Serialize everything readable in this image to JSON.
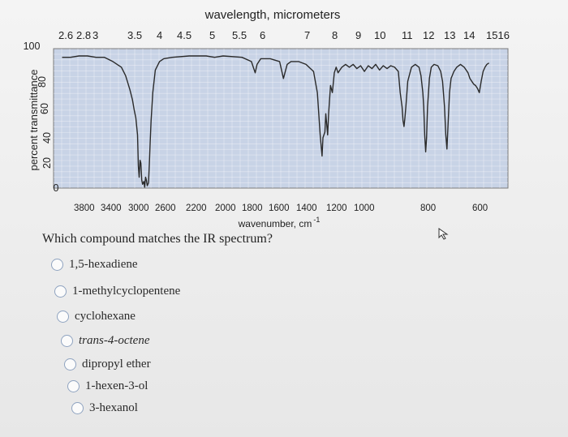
{
  "chart_data": {
    "type": "line",
    "top_axis_title": "wavelength, micrometers",
    "top_ticks": [
      "2.6",
      "2.8",
      "3",
      "3.5",
      "4",
      "4.5",
      "5",
      "5.5",
      "6",
      "7",
      "8",
      "9",
      "10",
      "11",
      "12",
      "13",
      "14",
      "1516"
    ],
    "xlabel": "wavenumber, cm",
    "xlabel_sup": "-1",
    "x_ticks": [
      "3800",
      "3400",
      "3000",
      "2600",
      "2200",
      "2000",
      "1800",
      "1600",
      "1400",
      "1200",
      "1000",
      "800",
      "600"
    ],
    "ylabel": "percent transmittance",
    "y_ticks": [
      "0",
      "20",
      "40",
      "60",
      "80",
      "100"
    ],
    "ylim": [
      0,
      100
    ],
    "grid": true,
    "line_color": "#2a2a2a",
    "plot_background": "#c8d3e6",
    "points": [
      [
        3900,
        95
      ],
      [
        3800,
        95
      ],
      [
        3700,
        96
      ],
      [
        3600,
        96
      ],
      [
        3500,
        95
      ],
      [
        3400,
        95
      ],
      [
        3300,
        92
      ],
      [
        3200,
        88
      ],
      [
        3150,
        82
      ],
      [
        3100,
        72
      ],
      [
        3070,
        65
      ],
      [
        3050,
        58
      ],
      [
        3030,
        52
      ],
      [
        3010,
        40
      ],
      [
        3000,
        18
      ],
      [
        2990,
        10
      ],
      [
        2980,
        22
      ],
      [
        2970,
        20
      ],
      [
        2960,
        8
      ],
      [
        2950,
        5
      ],
      [
        2935,
        7
      ],
      [
        2925,
        3
      ],
      [
        2915,
        10
      ],
      [
        2905,
        8
      ],
      [
        2895,
        4
      ],
      [
        2880,
        6
      ],
      [
        2870,
        20
      ],
      [
        2860,
        35
      ],
      [
        2850,
        50
      ],
      [
        2830,
        70
      ],
      [
        2800,
        86
      ],
      [
        2750,
        92
      ],
      [
        2700,
        94
      ],
      [
        2600,
        95
      ],
      [
        2400,
        96
      ],
      [
        2200,
        96
      ],
      [
        2100,
        95
      ],
      [
        2000,
        96
      ],
      [
        1900,
        95
      ],
      [
        1850,
        92
      ],
      [
        1830,
        84
      ],
      [
        1820,
        90
      ],
      [
        1800,
        94
      ],
      [
        1750,
        94
      ],
      [
        1700,
        92
      ],
      [
        1680,
        80
      ],
      [
        1660,
        90
      ],
      [
        1640,
        92
      ],
      [
        1600,
        92
      ],
      [
        1560,
        90
      ],
      [
        1520,
        85
      ],
      [
        1500,
        70
      ],
      [
        1485,
        40
      ],
      [
        1475,
        25
      ],
      [
        1470,
        38
      ],
      [
        1460,
        42
      ],
      [
        1455,
        55
      ],
      [
        1445,
        40
      ],
      [
        1440,
        55
      ],
      [
        1430,
        75
      ],
      [
        1420,
        70
      ],
      [
        1410,
        84
      ],
      [
        1400,
        88
      ],
      [
        1390,
        84
      ],
      [
        1380,
        86
      ],
      [
        1370,
        88
      ],
      [
        1350,
        90
      ],
      [
        1330,
        88
      ],
      [
        1310,
        90
      ],
      [
        1290,
        87
      ],
      [
        1270,
        89
      ],
      [
        1250,
        85
      ],
      [
        1230,
        89
      ],
      [
        1210,
        87
      ],
      [
        1190,
        90
      ],
      [
        1170,
        86
      ],
      [
        1150,
        89
      ],
      [
        1130,
        87
      ],
      [
        1110,
        89
      ],
      [
        1090,
        88
      ],
      [
        1070,
        85
      ],
      [
        1060,
        70
      ],
      [
        1050,
        60
      ],
      [
        1045,
        50
      ],
      [
        1040,
        46
      ],
      [
        1035,
        52
      ],
      [
        1030,
        60
      ],
      [
        1020,
        78
      ],
      [
        1000,
        88
      ],
      [
        980,
        90
      ],
      [
        960,
        88
      ],
      [
        950,
        82
      ],
      [
        940,
        70
      ],
      [
        935,
        60
      ],
      [
        930,
        40
      ],
      [
        925,
        28
      ],
      [
        920,
        38
      ],
      [
        915,
        60
      ],
      [
        905,
        80
      ],
      [
        895,
        88
      ],
      [
        880,
        90
      ],
      [
        860,
        89
      ],
      [
        845,
        85
      ],
      [
        835,
        78
      ],
      [
        825,
        60
      ],
      [
        818,
        40
      ],
      [
        812,
        30
      ],
      [
        805,
        50
      ],
      [
        798,
        70
      ],
      [
        790,
        80
      ],
      [
        775,
        85
      ],
      [
        760,
        88
      ],
      [
        740,
        90
      ],
      [
        720,
        88
      ],
      [
        700,
        84
      ],
      [
        690,
        80
      ],
      [
        680,
        78
      ],
      [
        670,
        76
      ],
      [
        660,
        75
      ],
      [
        650,
        73
      ],
      [
        640,
        70
      ],
      [
        630,
        78
      ],
      [
        620,
        85
      ],
      [
        610,
        88
      ],
      [
        600,
        90
      ],
      [
        590,
        91
      ]
    ]
  },
  "question": "Which compound matches the IR spectrum?",
  "options": [
    {
      "label": "1,5-hexadiene",
      "italic": false
    },
    {
      "label": "1-methylcyclopentene",
      "italic": false
    },
    {
      "label": "cyclohexane",
      "italic": false
    },
    {
      "label": "trans-4-octene",
      "italic": true
    },
    {
      "label": "dipropyl ether",
      "italic": false
    },
    {
      "label": "1-hexen-3-ol",
      "italic": false
    },
    {
      "label": "3-hexanol",
      "italic": false
    }
  ]
}
